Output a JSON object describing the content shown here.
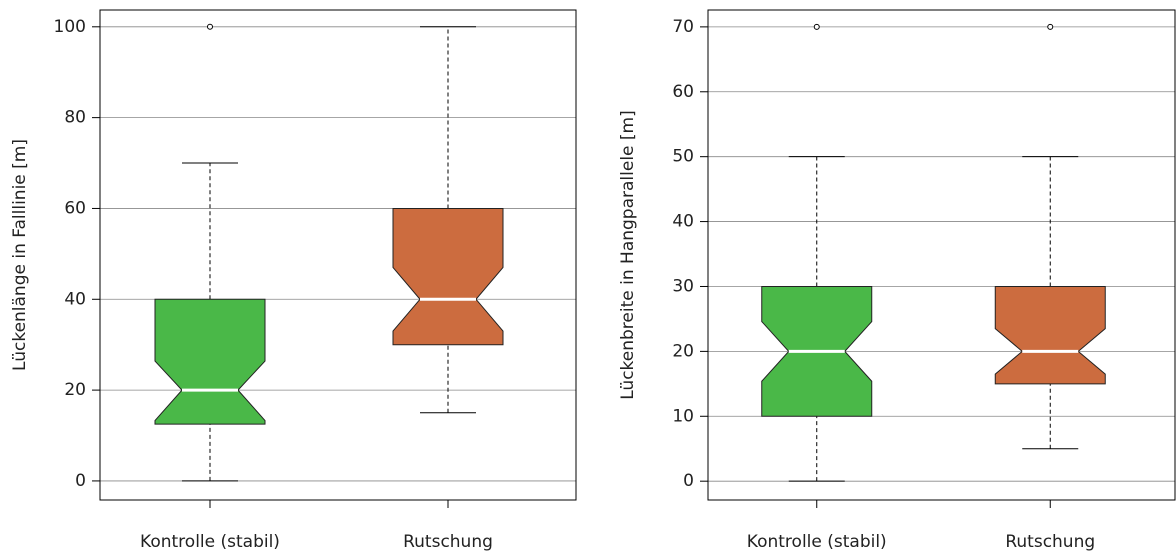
{
  "chart_data": [
    {
      "type": "boxplot",
      "ylabel": "Lückenlänge in Falllinie [m]",
      "categories": [
        "Kontrolle (stabil)",
        "Rutschung"
      ],
      "ylim": [
        -4.2,
        103.7
      ],
      "yticks": [
        0,
        20,
        40,
        60,
        80,
        100
      ],
      "grid": true,
      "boxes": [
        {
          "whislo": 0,
          "q1": 12.5,
          "notch_lo": 13.3,
          "med": 20,
          "notch_hi": 26.4,
          "q3": 40,
          "whishi": 70,
          "fliers": [
            100
          ],
          "color": "#4ab848"
        },
        {
          "whislo": 15,
          "q1": 30,
          "notch_lo": 33,
          "med": 40,
          "notch_hi": 47,
          "q3": 60,
          "whishi": 100,
          "fliers": [],
          "color": "#cc6c3f"
        }
      ]
    },
    {
      "type": "boxplot",
      "ylabel": "Lückenbreite in Hangparallele [m]",
      "categories": [
        "Kontrolle (stabil)",
        "Rutschung"
      ],
      "ylim": [
        -2.9,
        72.6
      ],
      "yticks": [
        0,
        10,
        20,
        30,
        40,
        50,
        60,
        70
      ],
      "grid": true,
      "boxes": [
        {
          "whislo": 0,
          "q1": 10,
          "notch_lo": 15.4,
          "med": 20,
          "notch_hi": 24.6,
          "q3": 30,
          "whishi": 50,
          "fliers": [
            70
          ],
          "color": "#4ab848"
        },
        {
          "whislo": 5,
          "q1": 15,
          "notch_lo": 16.5,
          "med": 20,
          "notch_hi": 23.5,
          "q3": 30,
          "whishi": 50,
          "fliers": [
            70
          ],
          "color": "#cc6c3f"
        }
      ]
    }
  ]
}
